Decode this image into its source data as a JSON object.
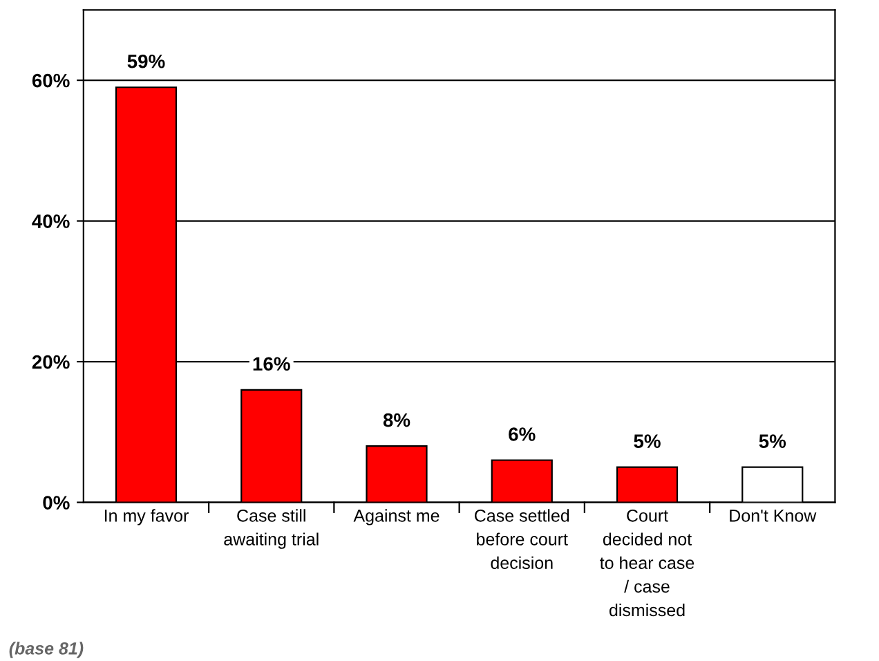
{
  "chart_data": {
    "type": "bar",
    "categories": [
      "In my favor",
      "Case still\nawaiting trial",
      "Against me",
      "Case settled\nbefore court\ndecision",
      "Court\ndecided not\nto hear case\n/ case\ndismissed",
      "Don't Know"
    ],
    "values": [
      59,
      16,
      8,
      6,
      5,
      5
    ],
    "colors": [
      "#ff0000",
      "#ff0000",
      "#ff0000",
      "#ff0000",
      "#ff0000",
      "#ffffff"
    ],
    "value_labels": [
      "59%",
      "16%",
      "8%",
      "6%",
      "5%",
      "5%"
    ],
    "ylim": [
      0,
      70
    ],
    "yticks": [
      {
        "value": 0,
        "label": "0%"
      },
      {
        "value": 20,
        "label": "20%"
      },
      {
        "value": 40,
        "label": "40%"
      },
      {
        "value": 60,
        "label": "60%"
      }
    ],
    "grid": "y",
    "annotations": [
      "(base 81)"
    ]
  }
}
